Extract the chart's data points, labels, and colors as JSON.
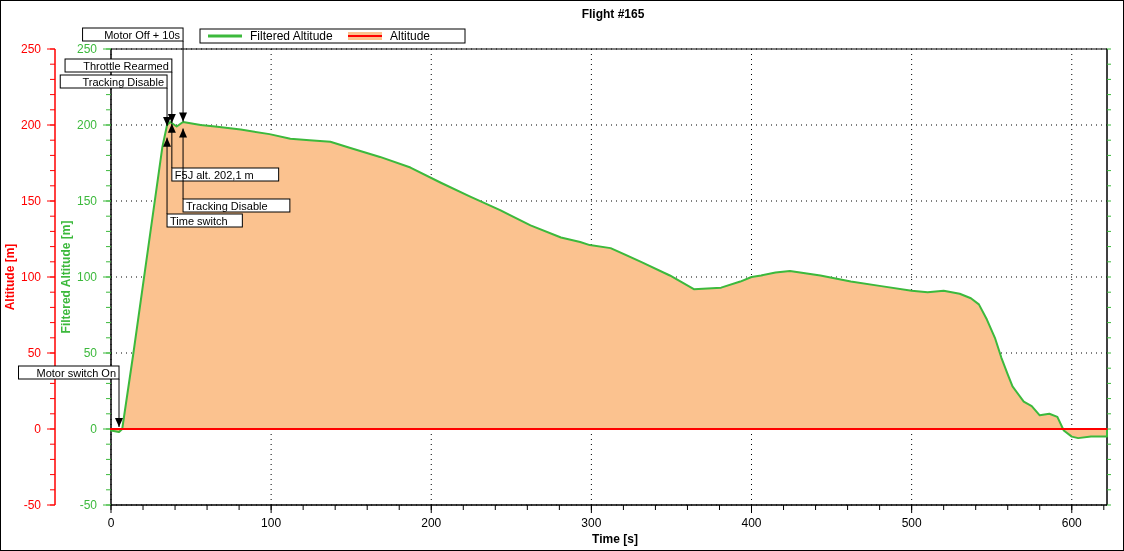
{
  "chart_data": {
    "type": "line",
    "title": "Flight #165",
    "xlabel": "Time [s]",
    "ylabel": "Altitude [m]",
    "y2label": "Filtered Altitude [m]",
    "xlim": [
      0,
      622
    ],
    "xticks": [
      0,
      100,
      200,
      300,
      400,
      500,
      600
    ],
    "ylim": [
      -50,
      250
    ],
    "yticks": [
      -50,
      0,
      50,
      100,
      150,
      200,
      250
    ],
    "y2lim": [
      -50,
      250
    ],
    "y2ticks": [
      -50,
      0,
      50,
      100,
      150,
      200,
      250
    ],
    "grid": true,
    "legend": "top left",
    "series": [
      {
        "name": "Filtered Altitude",
        "type": "area",
        "axis": "y2",
        "color": "#3cb93c",
        "x": [
          0,
          5,
          7,
          14,
          32,
          35,
          37,
          41,
          45,
          56,
          65,
          81,
          99,
          112,
          124,
          137,
          149,
          168,
          187,
          206,
          224,
          243,
          262,
          281,
          293,
          299,
          312,
          331,
          349,
          364,
          381,
          393,
          400,
          406,
          415,
          424,
          443,
          462,
          481,
          500,
          510,
          520,
          530,
          537,
          542,
          547,
          552,
          556,
          560,
          563,
          570,
          575,
          580,
          586,
          591,
          595,
          600,
          604,
          612,
          622
        ],
        "values": [
          -1,
          -2,
          0,
          50,
          185,
          200,
          202,
          199,
          202,
          200,
          199,
          197,
          194,
          191,
          190,
          189,
          185,
          179,
          172,
          162,
          153,
          144,
          134,
          126,
          123,
          121,
          119,
          110,
          101,
          92,
          93,
          97,
          100,
          101,
          103,
          104,
          101,
          97,
          94,
          91,
          90,
          91,
          89,
          86,
          82,
          72,
          60,
          47,
          36,
          28,
          18,
          15,
          9,
          10,
          8,
          -1,
          -5,
          -6,
          -5,
          -5
        ]
      },
      {
        "name": "Altitude",
        "type": "line",
        "axis": "y",
        "color": "#ff0000",
        "x": [
          0,
          622
        ],
        "values": [
          0,
          0
        ]
      }
    ],
    "annotations": [
      {
        "text": "Motor switch On",
        "x": 5,
        "y": 0
      },
      {
        "text": "Tracking Disable",
        "x": 35,
        "y": 198
      },
      {
        "text": "Throttle Rearmed",
        "x": 38,
        "y": 200
      },
      {
        "text": "Motor Off + 10s",
        "x": 45,
        "y": 201
      },
      {
        "text": "F5J alt. 202,1 m",
        "x": 38,
        "y": 202.1
      },
      {
        "text": "Tracking Disable",
        "x": 45,
        "y": 199
      },
      {
        "text": "Time switch",
        "x": 35,
        "y": 193
      }
    ]
  }
}
